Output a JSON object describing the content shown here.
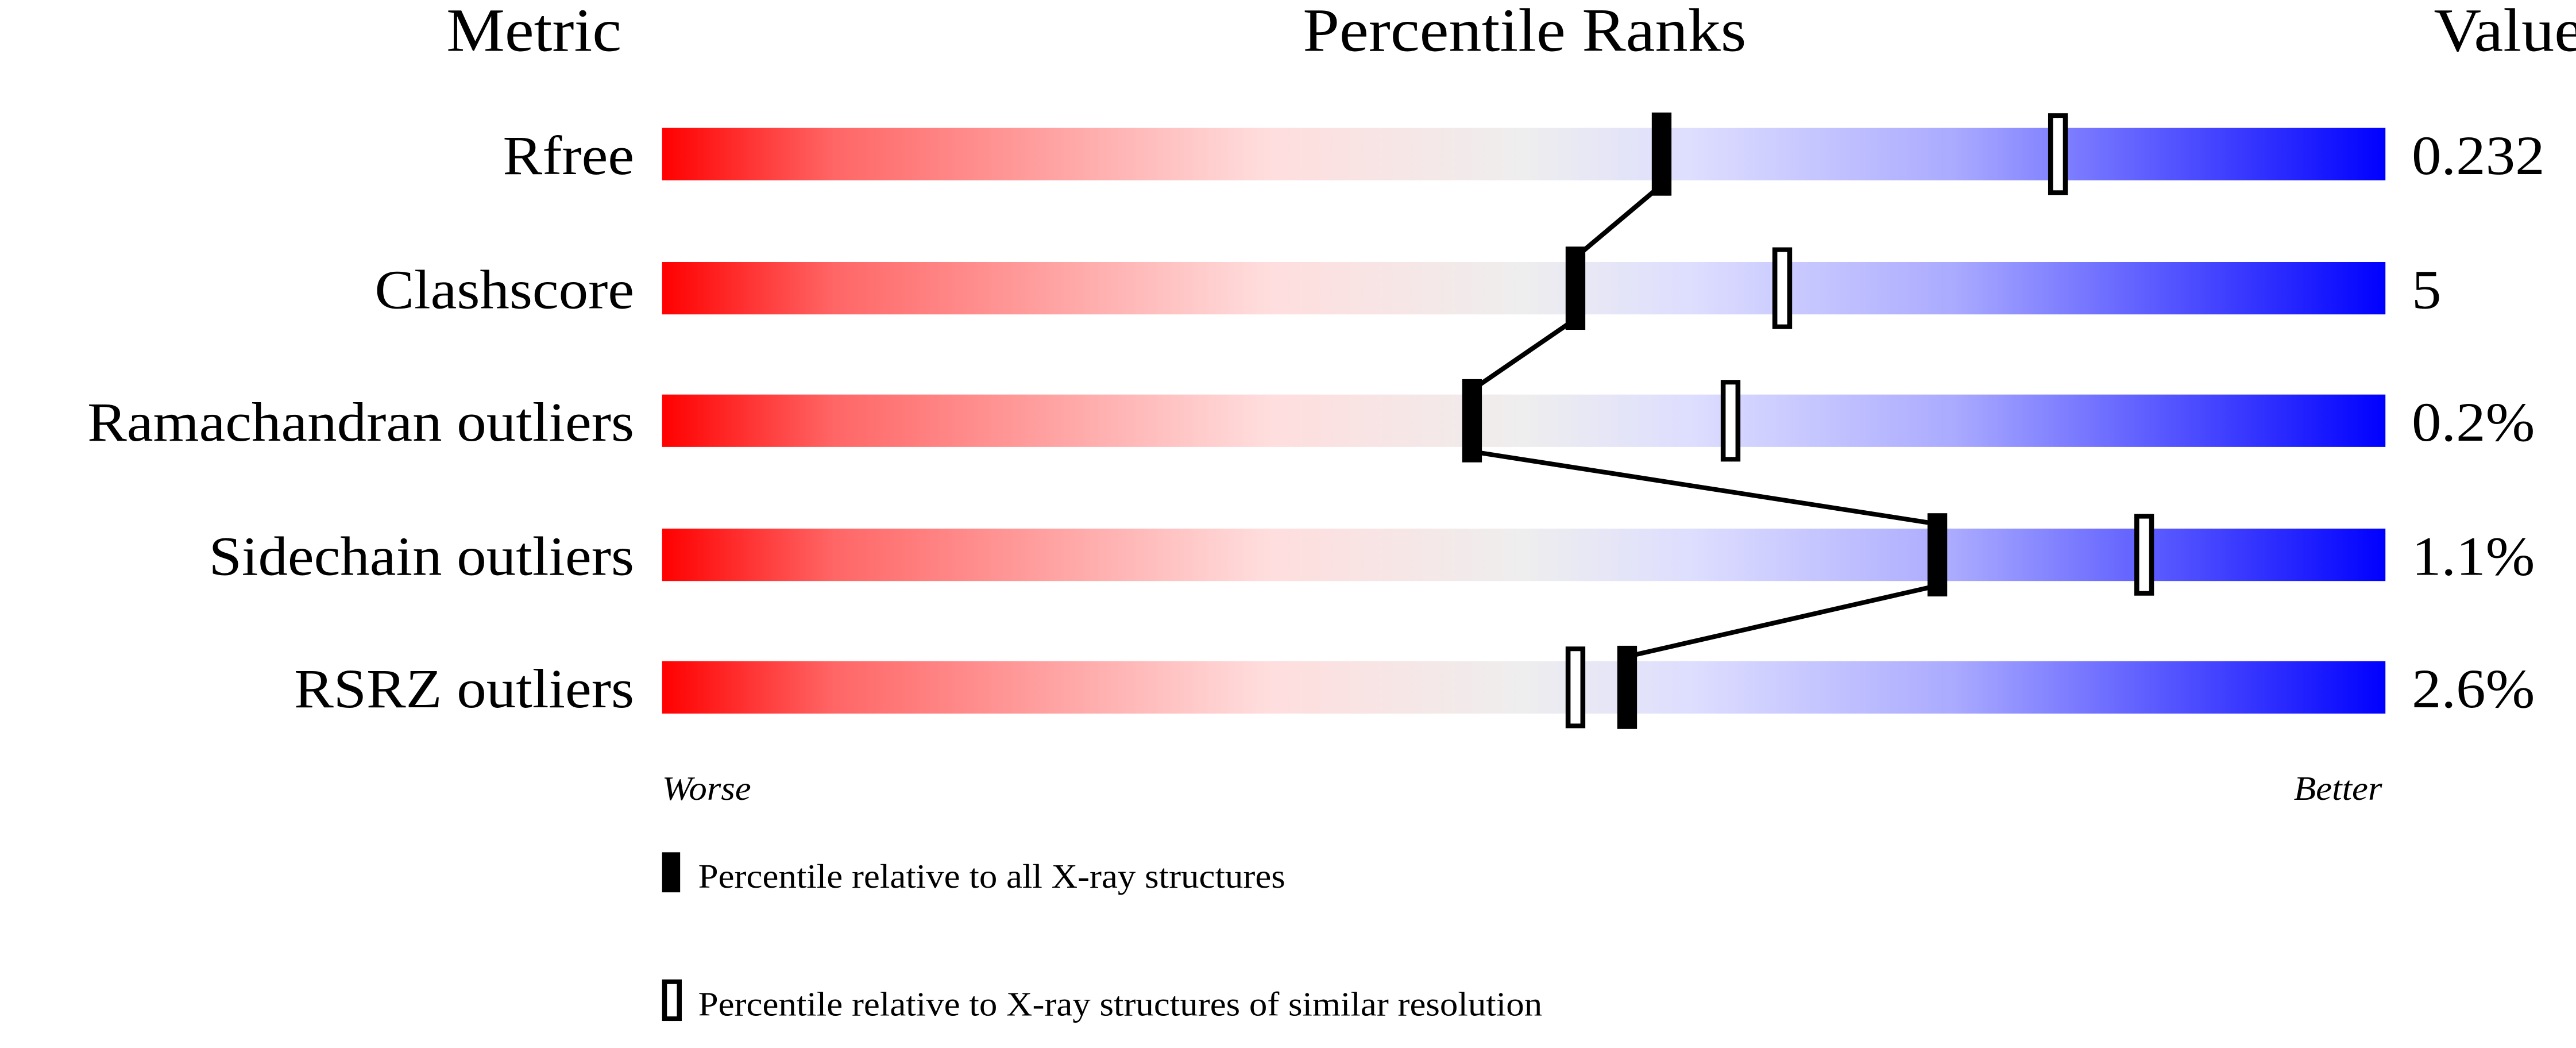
{
  "chart_data": {
    "type": "percentile-ranks",
    "headers": {
      "metric": "Metric",
      "ranks": "Percentile Ranks",
      "value": "Value"
    },
    "xlim": [
      0,
      100
    ],
    "axis_labels": {
      "left": "Worse",
      "right": "Better"
    },
    "rows": [
      {
        "metric": "Rfree",
        "value": "0.232",
        "percentile_all": 58,
        "percentile_similar": 81
      },
      {
        "metric": "Clashscore",
        "value": "5",
        "percentile_all": 53,
        "percentile_similar": 65
      },
      {
        "metric": "Ramachandran outliers",
        "value": "0.2%",
        "percentile_all": 47,
        "percentile_similar": 62
      },
      {
        "metric": "Sidechain outliers",
        "value": "1.1%",
        "percentile_all": 74,
        "percentile_similar": 86
      },
      {
        "metric": "RSRZ outliers",
        "value": "2.6%",
        "percentile_all": 56,
        "percentile_similar": 53
      }
    ],
    "legend": [
      {
        "marker": "filled",
        "label": "Percentile relative to all X-ray structures"
      },
      {
        "marker": "hollow",
        "label": "Percentile relative to X-ray structures of similar resolution"
      }
    ],
    "colors": {
      "worse": "#ff0000",
      "middle": "#eeeeee",
      "better": "#0000ff",
      "marker": "#000000"
    }
  }
}
